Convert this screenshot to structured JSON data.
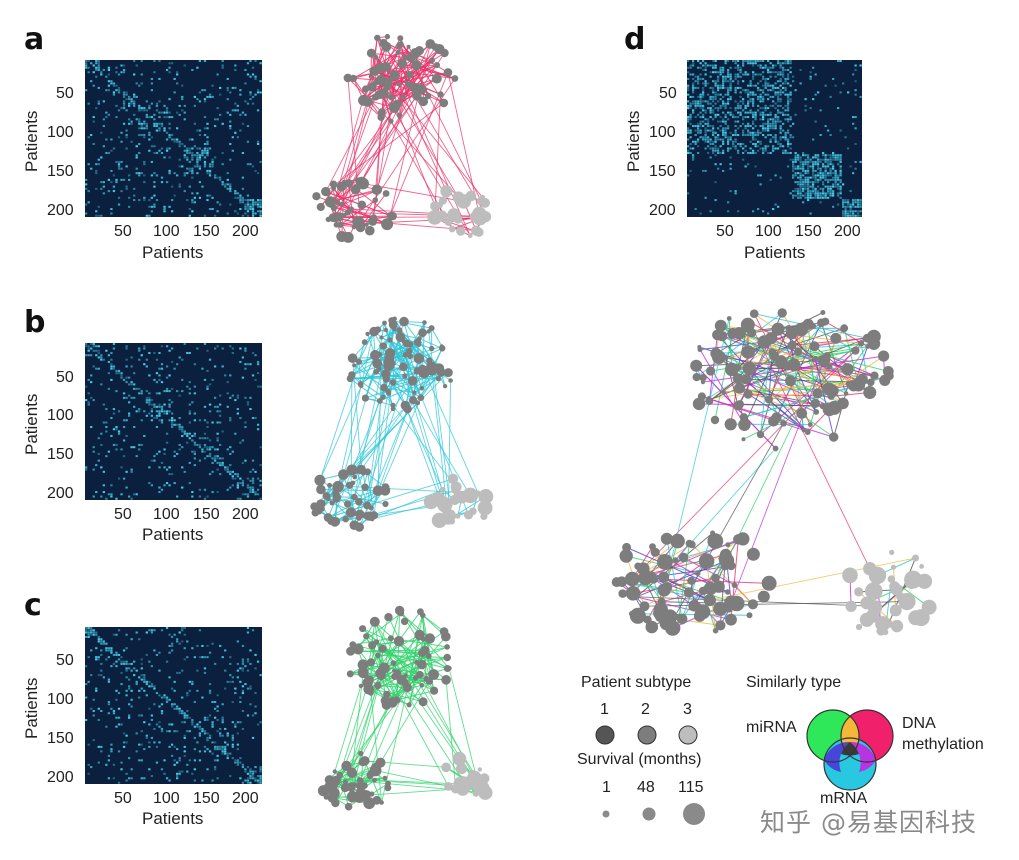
{
  "panels": {
    "a": {
      "letter": "a",
      "xticks": [
        "50",
        "100",
        "150",
        "200"
      ],
      "yticks": [
        "50",
        "100",
        "150",
        "200"
      ],
      "xlabel": "Patients",
      "ylabel": "Patients",
      "edge_color": "#e8336a"
    },
    "b": {
      "letter": "b",
      "xticks": [
        "50",
        "100",
        "150",
        "200"
      ],
      "yticks": [
        "50",
        "100",
        "150",
        "200"
      ],
      "xlabel": "Patients",
      "ylabel": "Patients",
      "edge_color": "#2ec6d8"
    },
    "c": {
      "letter": "c",
      "xticks": [
        "50",
        "100",
        "150",
        "200"
      ],
      "yticks": [
        "50",
        "100",
        "150",
        "200"
      ],
      "xlabel": "Patients",
      "ylabel": "Patients",
      "edge_color": "#2ed36a"
    },
    "d": {
      "letter": "d",
      "xticks": [
        "50",
        "100",
        "150",
        "200"
      ],
      "yticks": [
        "50",
        "100",
        "150",
        "200"
      ],
      "xlabel": "Patients",
      "ylabel": "Patients"
    }
  },
  "legend": {
    "subtype_title": "Patient subtype",
    "subtypes": [
      "1",
      "2",
      "3"
    ],
    "subtype_colors": [
      "#555555",
      "#7d7d7d",
      "#bdbdbd"
    ],
    "survival_title": "Survival (months)",
    "survival_values": [
      "1",
      "48",
      "115"
    ],
    "similarity_title": "Similarly type",
    "venn": {
      "mirna": "miRNA",
      "dna_line1": "DNA",
      "dna_line2": "methylation",
      "mrna": "mRNA"
    },
    "venn_colors": {
      "mirna": "#2ee85a",
      "dna": "#f0206a",
      "mrna": "#27c8e0"
    }
  },
  "watermark": "知乎 @易基因科技"
}
